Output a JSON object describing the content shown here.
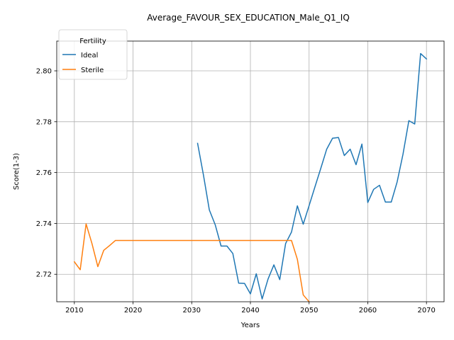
{
  "chart_data": {
    "type": "line",
    "title": "Average_FAVOUR_SEX_EDUCATION_Male_Q1_IQ",
    "xlabel": "Years",
    "ylabel": "Score(1-3)",
    "xlim": [
      2007,
      2073
    ],
    "ylim": [
      2.7092,
      2.8117
    ],
    "xticks": [
      2010,
      2020,
      2030,
      2040,
      2050,
      2060,
      2070
    ],
    "yticks": [
      2.72,
      2.74,
      2.76,
      2.78,
      2.8
    ],
    "ytick_labels": [
      "2.72",
      "2.74",
      "2.76",
      "2.78",
      "2.80"
    ],
    "grid": true,
    "legend": {
      "title": "Fertility",
      "placement": "top-left"
    },
    "series": [
      {
        "name": "Ideal",
        "color": "#1f77b4",
        "x": [
          2031,
          2032,
          2033,
          2034,
          2035,
          2036,
          2037,
          2038,
          2039,
          2040,
          2041,
          2042,
          2043,
          2044,
          2045,
          2046,
          2047,
          2048,
          2049,
          2050,
          2051,
          2052,
          2053,
          2054,
          2055,
          2056,
          2057,
          2058,
          2059,
          2060,
          2061,
          2062,
          2063,
          2064,
          2065,
          2066,
          2067,
          2068,
          2069,
          2070
        ],
        "values": [
          2.7715,
          2.759,
          2.7453,
          2.7395,
          2.7311,
          2.7311,
          2.7282,
          2.7165,
          2.7164,
          2.7123,
          2.7202,
          2.7103,
          2.7181,
          2.7237,
          2.7179,
          2.7321,
          2.7366,
          2.7469,
          2.7397,
          2.747,
          2.7544,
          2.7617,
          2.7692,
          2.7735,
          2.7738,
          2.7667,
          2.7692,
          2.7631,
          2.7712,
          2.7482,
          2.7534,
          2.755,
          2.7484,
          2.7484,
          2.7563,
          2.7672,
          2.7804,
          2.7791,
          2.8068,
          2.8047
        ]
      },
      {
        "name": "Sterile",
        "color": "#ff7f0e",
        "x": [
          2010,
          2011,
          2012,
          2013,
          2014,
          2015,
          2016,
          2017,
          2018,
          2019,
          2020,
          2021,
          2022,
          2023,
          2024,
          2025,
          2026,
          2027,
          2028,
          2029,
          2030,
          2031,
          2032,
          2033,
          2034,
          2035,
          2036,
          2037,
          2038,
          2039,
          2040,
          2041,
          2042,
          2043,
          2044,
          2045,
          2046,
          2047,
          2048,
          2049,
          2050
        ],
        "values": [
          2.7249,
          2.7218,
          2.7398,
          2.7321,
          2.723,
          2.7294,
          2.7313,
          2.7333,
          2.7333,
          2.7333,
          2.7333,
          2.7333,
          2.7333,
          2.7333,
          2.7333,
          2.7333,
          2.7333,
          2.7333,
          2.7333,
          2.7333,
          2.7333,
          2.7333,
          2.7333,
          2.7333,
          2.7333,
          2.7333,
          2.7333,
          2.7333,
          2.7333,
          2.7333,
          2.7333,
          2.7333,
          2.7333,
          2.7333,
          2.7333,
          2.7333,
          2.7333,
          2.7333,
          2.7259,
          2.7119,
          2.7092
        ]
      }
    ]
  }
}
